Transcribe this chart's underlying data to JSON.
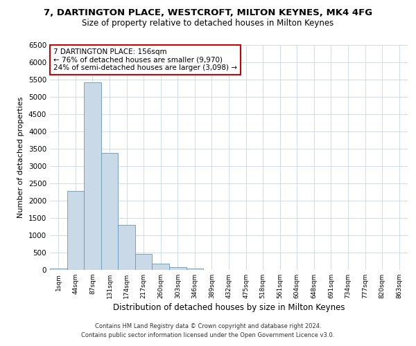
{
  "title1": "7, DARTINGTON PLACE, WESTCROFT, MILTON KEYNES, MK4 4FG",
  "title2": "Size of property relative to detached houses in Milton Keynes",
  "xlabel": "Distribution of detached houses by size in Milton Keynes",
  "ylabel": "Number of detached properties",
  "bar_labels": [
    "1sqm",
    "44sqm",
    "87sqm",
    "131sqm",
    "174sqm",
    "217sqm",
    "260sqm",
    "303sqm",
    "346sqm",
    "389sqm",
    "432sqm",
    "475sqm",
    "518sqm",
    "561sqm",
    "604sqm",
    "648sqm",
    "691sqm",
    "734sqm",
    "777sqm",
    "820sqm",
    "863sqm"
  ],
  "bar_values": [
    50,
    2280,
    5420,
    3380,
    1310,
    470,
    190,
    80,
    50,
    0,
    0,
    0,
    0,
    0,
    0,
    0,
    0,
    0,
    0,
    0,
    0
  ],
  "bar_color": "#c9d9e8",
  "bar_edge_color": "#6699bb",
  "ylim": [
    0,
    6500
  ],
  "yticks": [
    0,
    500,
    1000,
    1500,
    2000,
    2500,
    3000,
    3500,
    4000,
    4500,
    5000,
    5500,
    6000,
    6500
  ],
  "annotation_title": "7 DARTINGTON PLACE: 156sqm",
  "annotation_line1": "← 76% of detached houses are smaller (9,970)",
  "annotation_line2": "24% of semi-detached houses are larger (3,098) →",
  "annotation_box_color": "#ffffff",
  "annotation_box_edge": "#cc0000",
  "footnote1": "Contains HM Land Registry data © Crown copyright and database right 2024.",
  "footnote2": "Contains public sector information licensed under the Open Government Licence v3.0.",
  "background_color": "#ffffff",
  "grid_color": "#c8d8e8"
}
